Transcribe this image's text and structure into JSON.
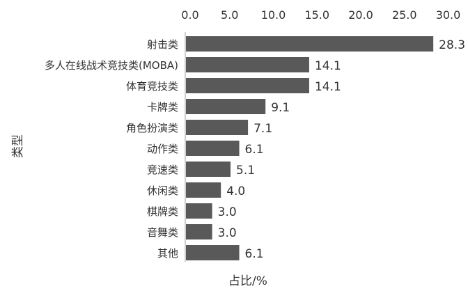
{
  "chart_data": {
    "type": "bar",
    "orientation": "horizontal",
    "categories": [
      "射击类",
      "多人在线战术竞技类(MOBA)",
      "体育竞技类",
      "卡牌类",
      "角色扮演类",
      "动作类",
      "竞速类",
      "休闲类",
      "棋牌类",
      "音舞类",
      "其他"
    ],
    "values": [
      28.3,
      14.1,
      14.1,
      9.1,
      7.1,
      6.1,
      5.1,
      4.0,
      3.0,
      3.0,
      6.1
    ],
    "data_labels": [
      "28.3",
      "14.1",
      "14.1",
      "9.1",
      "7.1",
      "6.1",
      "5.1",
      "4.0",
      "3.0",
      "3.0",
      "6.1"
    ],
    "xlabel": "占比/%",
    "ylabel": "类型",
    "xlim": [
      0,
      30
    ],
    "xticks": [
      "0.0",
      "5.0",
      "10.0",
      "15.0",
      "20.0",
      "25.0",
      "30.0"
    ],
    "x_axis_position": "top",
    "grid": false,
    "bar_color": "#595959"
  }
}
